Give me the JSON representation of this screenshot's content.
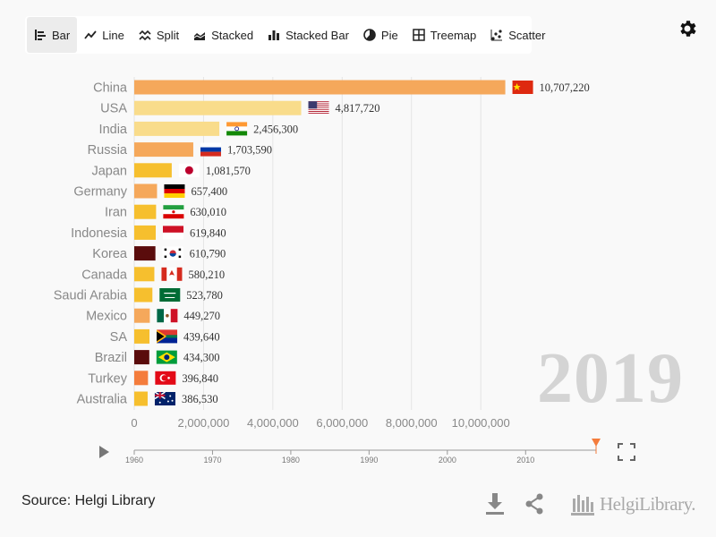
{
  "toolbar": {
    "tabs": [
      {
        "label": "Bar",
        "icon": "bar-chart-icon",
        "active": true
      },
      {
        "label": "Line",
        "icon": "line-chart-icon",
        "active": false
      },
      {
        "label": "Split",
        "icon": "split-chart-icon",
        "active": false
      },
      {
        "label": "Stacked",
        "icon": "stacked-area-icon",
        "active": false
      },
      {
        "label": "Stacked Bar",
        "icon": "stacked-bar-icon",
        "active": false
      },
      {
        "label": "Pie",
        "icon": "pie-chart-icon",
        "active": false
      },
      {
        "label": "Treemap",
        "icon": "treemap-icon",
        "active": false
      },
      {
        "label": "Scatter",
        "icon": "scatter-chart-icon",
        "active": false
      }
    ]
  },
  "chart_data": {
    "type": "bar",
    "orientation": "horizontal",
    "year": "2019",
    "categories": [
      "China",
      "USA",
      "India",
      "Russia",
      "Japan",
      "Germany",
      "Iran",
      "Indonesia",
      "Korea",
      "Canada",
      "Saudi Arabia",
      "Mexico",
      "SA",
      "Brazil",
      "Turkey",
      "Australia"
    ],
    "values": [
      10707220,
      4817720,
      2456300,
      1703590,
      1081570,
      657400,
      630010,
      619840,
      610790,
      580210,
      523780,
      449270,
      439640,
      434300,
      396840,
      386530
    ],
    "value_labels": [
      "10,707,220",
      "4,817,720",
      "2,456,300",
      "1,703,590",
      "1,081,570",
      "657,400",
      "630,010",
      "619,840",
      "610,790",
      "580,210",
      "523,780",
      "449,270",
      "439,640",
      "434,300",
      "396,840",
      "386,530"
    ],
    "bar_colors": [
      "#f5a85b",
      "#f9dc8b",
      "#f9dc8b",
      "#f5a85b",
      "#f6bf2e",
      "#f5a85b",
      "#f6bf2e",
      "#f6bf2e",
      "#5a0c0c",
      "#f6bf2e",
      "#f6bf2e",
      "#f5a85b",
      "#f6bf2e",
      "#5a0c0c",
      "#f47c3c",
      "#f6bf2e"
    ],
    "flags": [
      "china-flag",
      "usa-flag",
      "india-flag",
      "russia-flag",
      "japan-flag",
      "germany-flag",
      "iran-flag",
      "indonesia-flag",
      "korea-flag",
      "canada-flag",
      "saudi-arabia-flag",
      "mexico-flag",
      "south-africa-flag",
      "brazil-flag",
      "turkey-flag",
      "australia-flag"
    ],
    "x_ticks": [
      0,
      2000000,
      4000000,
      6000000,
      8000000,
      10000000
    ],
    "x_tick_labels": [
      "0",
      "2,000,000",
      "4,000,000",
      "6,000,000",
      "8,000,000",
      "10,000,000"
    ],
    "xlim": [
      0,
      12000000
    ],
    "grid": true,
    "legend": "none"
  },
  "timeline": {
    "ticks": [
      1960,
      1970,
      1980,
      1990,
      2000,
      2010
    ],
    "tick_labels": [
      "1960",
      "1970",
      "1980",
      "1990",
      "2000",
      "2010"
    ],
    "range": [
      1960,
      2019
    ],
    "current": 2019,
    "marker_color": "#f47c3c"
  },
  "footer": {
    "source": "Source: Helgi Library",
    "logo_text": "HelgiLibrary."
  }
}
